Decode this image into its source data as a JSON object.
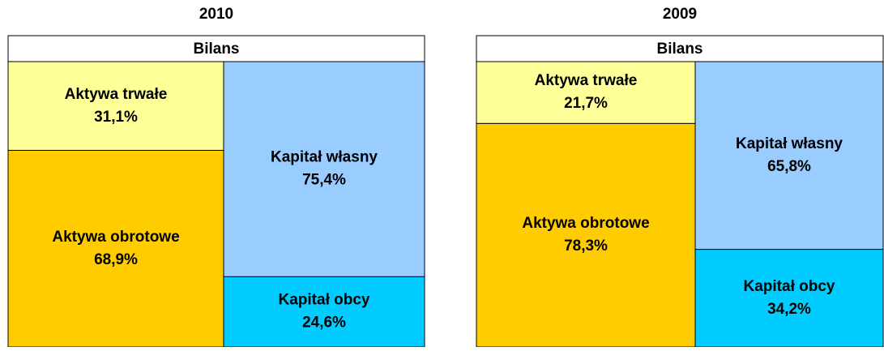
{
  "chart_data": [
    {
      "type": "balance",
      "title": "2010",
      "subtitle": "Bilans",
      "series": [
        {
          "name": "Aktywa trwałe",
          "color": "#ffff99",
          "stack": 0,
          "values": [
            31.1
          ],
          "value_labels": [
            "31,1%"
          ]
        },
        {
          "name": "Aktywa obrotowe",
          "color": "#ffcc00",
          "stack": 0,
          "values": [
            68.9
          ],
          "value_labels": [
            "68,9%"
          ]
        },
        {
          "name": "Kapitał własny",
          "color": "#99ccff",
          "stack": 1,
          "values": [
            75.4
          ],
          "value_labels": [
            "75,4%"
          ]
        },
        {
          "name": "Kapitał obcy",
          "color": "#00ccff",
          "stack": 1,
          "values": [
            24.6
          ],
          "value_labels": [
            "24,6%"
          ]
        }
      ]
    },
    {
      "type": "balance",
      "title": "2009",
      "subtitle": "Bilans",
      "series": [
        {
          "name": "Aktywa trwałe",
          "color": "#ffff99",
          "stack": 0,
          "values": [
            21.7
          ],
          "value_labels": [
            "21,7%"
          ]
        },
        {
          "name": "Aktywa obrotowe",
          "color": "#ffcc00",
          "stack": 0,
          "values": [
            78.3
          ],
          "value_labels": [
            "78,3%"
          ]
        },
        {
          "name": "Kapitał własny",
          "color": "#99ccff",
          "stack": 1,
          "values": [
            65.8
          ],
          "value_labels": [
            "65,8%"
          ]
        },
        {
          "name": "Kapitał obcy",
          "color": "#00ccff",
          "stack": 1,
          "values": [
            34.2
          ],
          "value_labels": [
            "34,2%"
          ]
        }
      ]
    }
  ]
}
